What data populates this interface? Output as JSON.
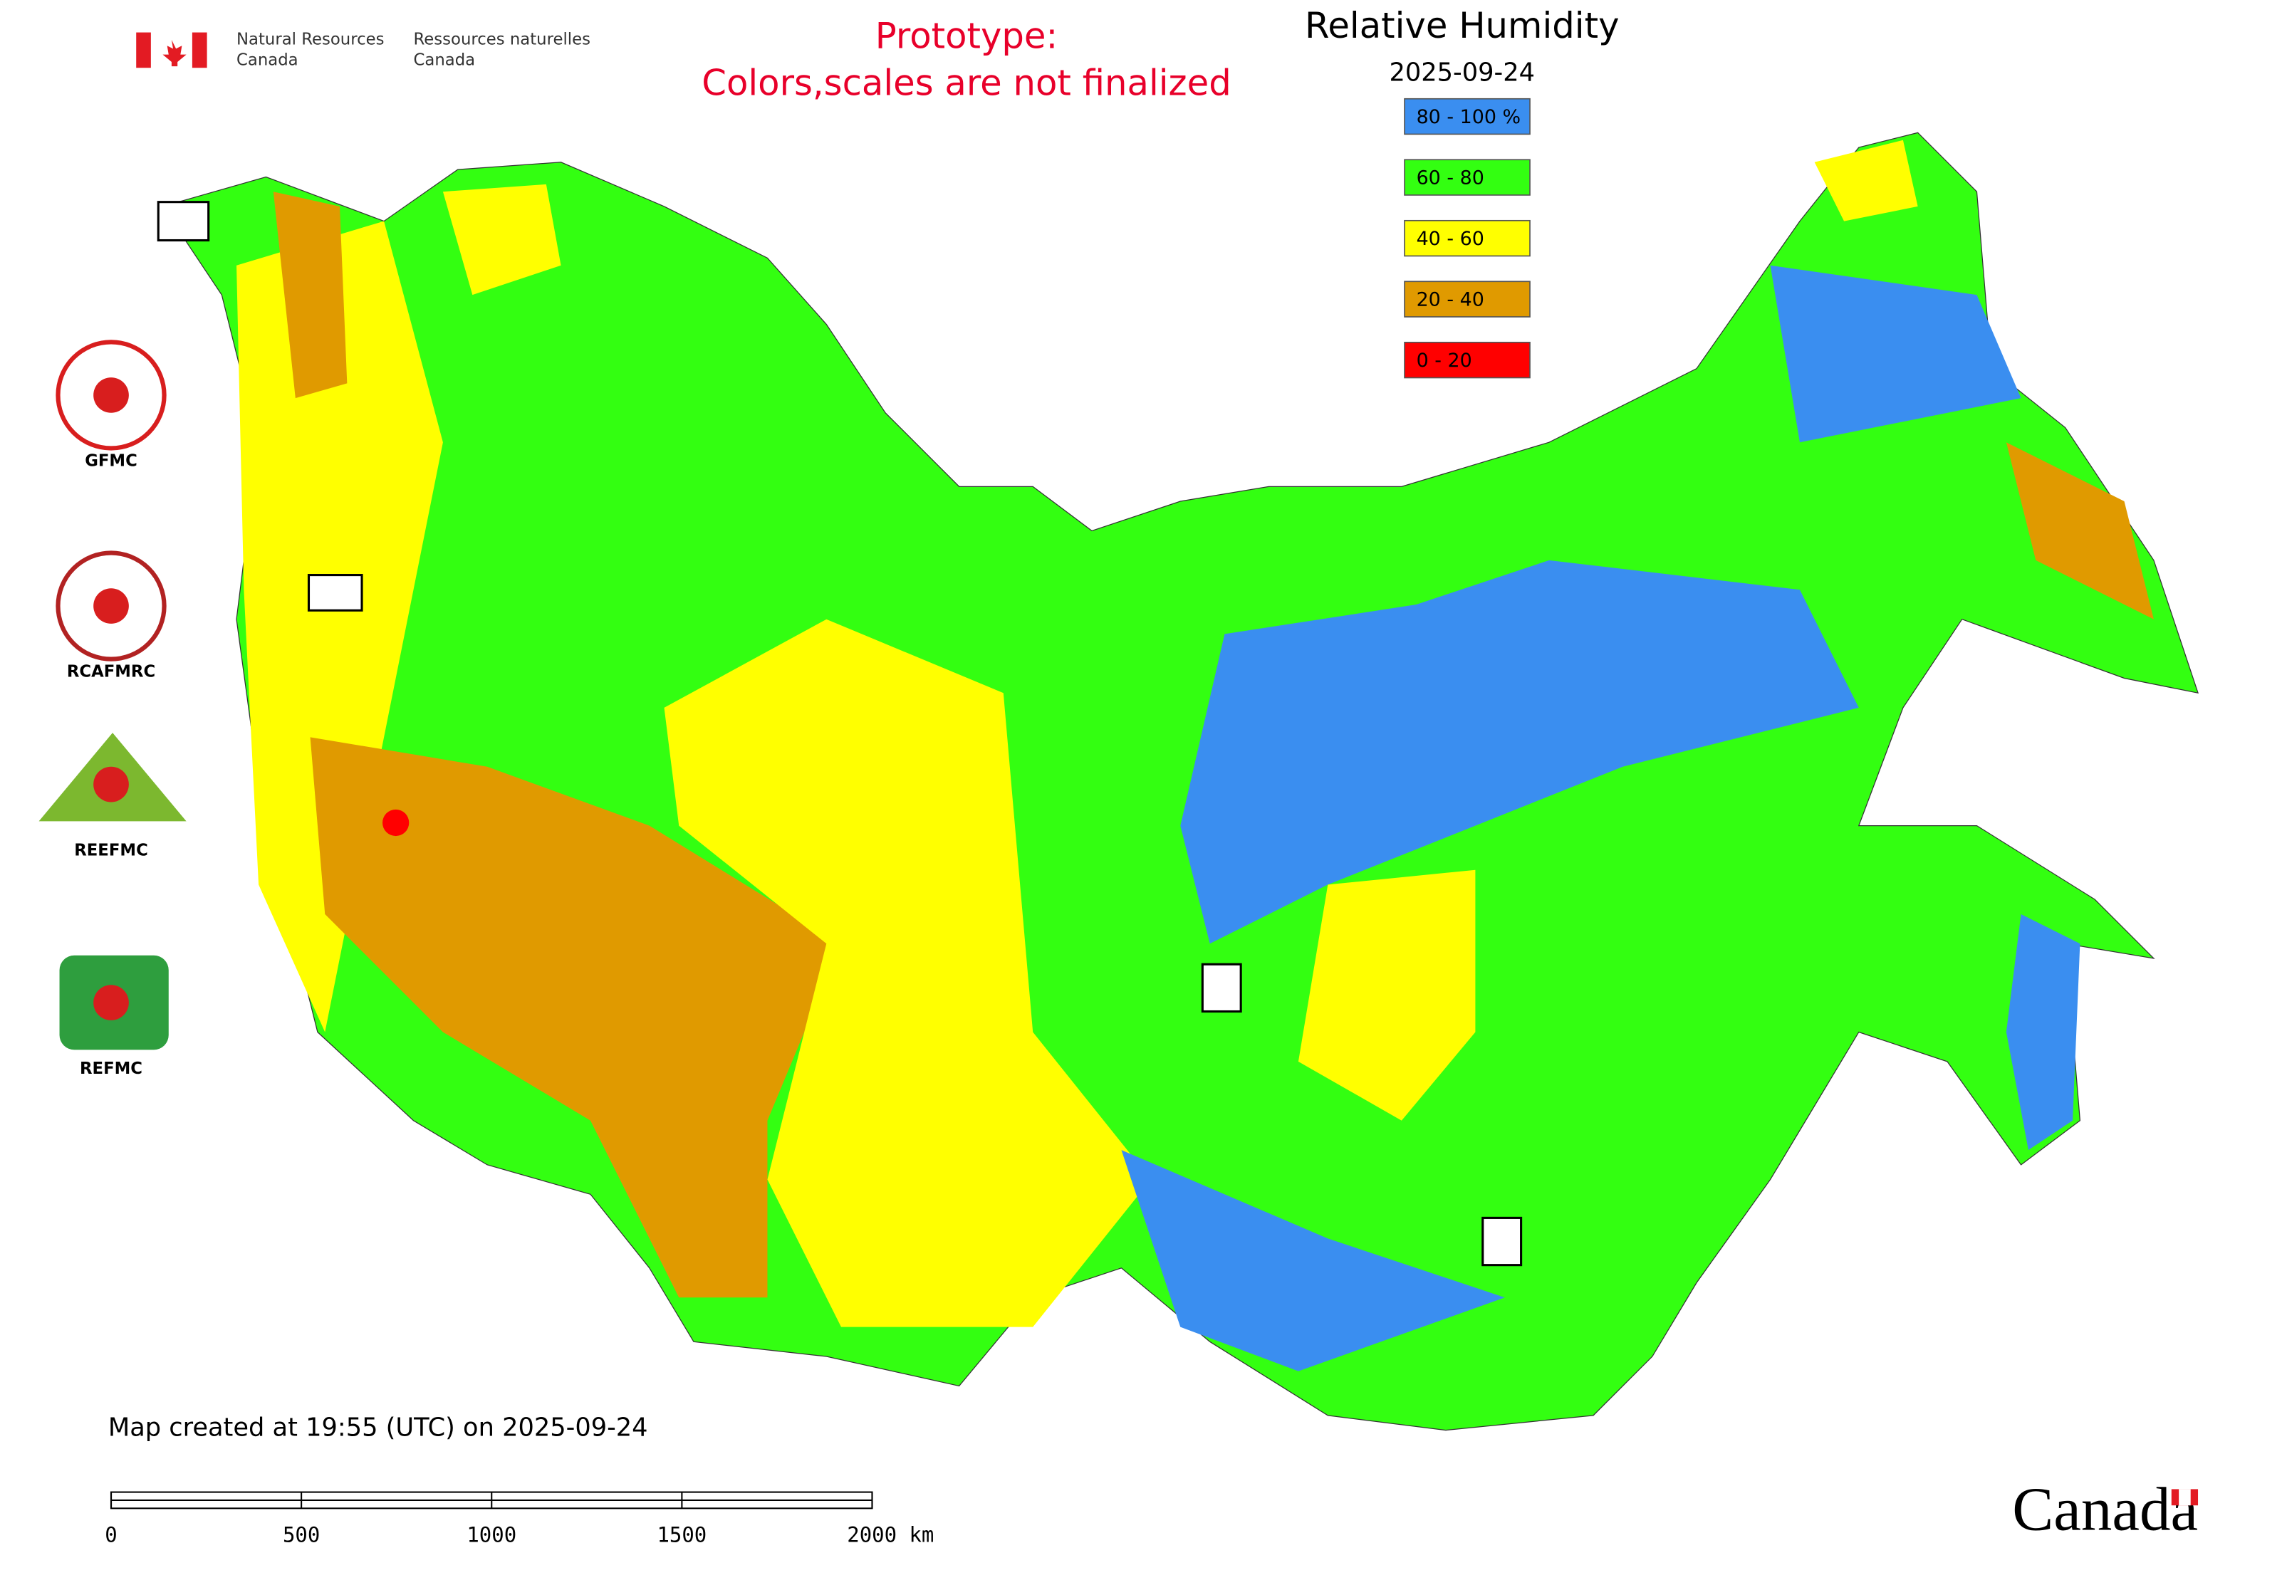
{
  "header": {
    "agency_en": [
      "Natural Resources",
      "Canada"
    ],
    "agency_fr": [
      "Ressources naturelles",
      "Canada"
    ]
  },
  "notice": [
    "Prototype:",
    "Colors,scales are not finalized"
  ],
  "title": "Relative Humidity",
  "date": "2025-09-24",
  "legend": [
    {
      "label": "80 - 100 %",
      "color": "#3a8ef0"
    },
    {
      "label": "60 - 80",
      "color": "#33ff11"
    },
    {
      "label": "40 - 60",
      "color": "#ffff00"
    },
    {
      "label": "20 - 40",
      "color": "#e09a00"
    },
    {
      "label": "0 - 20",
      "color": "#ff0000"
    }
  ],
  "logos": [
    "GFMC",
    "RCAFMRC",
    "REEFMC",
    "REFMC"
  ],
  "footer": {
    "created": "Map created at 19:55 (UTC) on 2025-09-24"
  },
  "scale_bar": {
    "ticks": [
      "0",
      "500",
      "1000",
      "1500",
      "2000 km"
    ]
  },
  "wordmark": "Canada"
}
